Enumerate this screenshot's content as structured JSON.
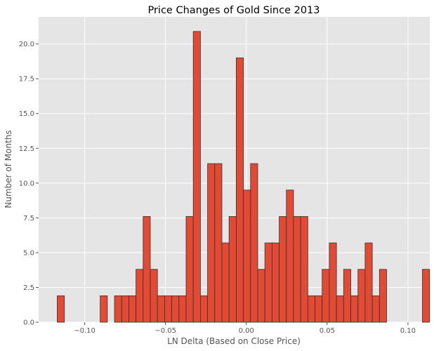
{
  "chart_data": {
    "type": "bar",
    "title": "Price Changes of Gold Since 2013",
    "xlabel": "LN Delta (Based on Close Price)",
    "ylabel": "Number of Months",
    "xlim": [
      -0.1285,
      0.1135
    ],
    "ylim": [
      0,
      21.95
    ],
    "x_ticks": [
      -0.1,
      -0.05,
      0.0,
      0.05,
      0.1
    ],
    "x_tick_labels": [
      "−0.10",
      "−0.05",
      "0.00",
      "0.05",
      "0.10"
    ],
    "y_ticks": [
      0.0,
      2.5,
      5.0,
      7.5,
      10.0,
      12.5,
      15.0,
      17.5,
      20.0
    ],
    "y_tick_labels": [
      "0.0",
      "2.5",
      "5.0",
      "7.5",
      "10.0",
      "12.5",
      "15.0",
      "17.5",
      "20.0"
    ],
    "grid": true,
    "bin_start": -0.117,
    "bin_width": 0.00443,
    "values": [
      1.9,
      0,
      0,
      0,
      0,
      0,
      1.9,
      0,
      1.9,
      1.9,
      1.9,
      3.8,
      7.6,
      3.8,
      1.9,
      1.9,
      1.9,
      1.9,
      7.6,
      20.9,
      1.9,
      11.4,
      11.4,
      5.7,
      7.6,
      19.0,
      9.5,
      11.4,
      3.8,
      5.7,
      5.7,
      7.6,
      9.5,
      7.6,
      7.6,
      1.9,
      1.9,
      3.8,
      5.7,
      1.9,
      3.8,
      1.9,
      3.8,
      5.7,
      1.9,
      3.8,
      0,
      0,
      0,
      0,
      0,
      3.8
    ],
    "colors": {
      "bar_fill": "#e24a33",
      "bar_edge": "#333333",
      "plot_bg": "#e5e5e5",
      "grid": "#ffffff"
    }
  }
}
